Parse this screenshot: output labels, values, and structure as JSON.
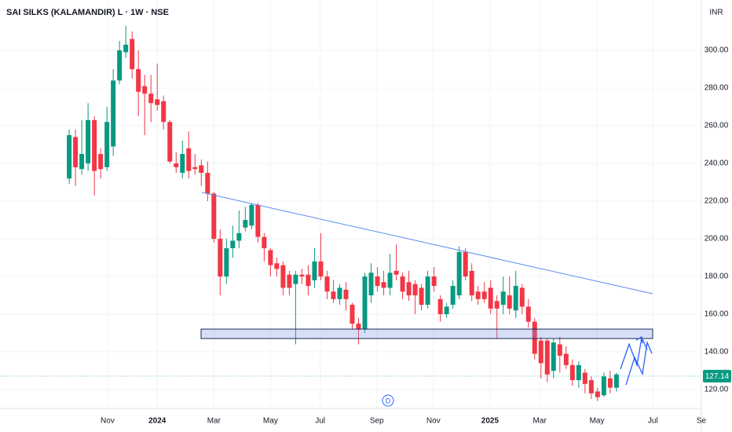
{
  "chart_data": {
    "type": "candlestick",
    "title": "SAI SILKS (KALAMANDIR) L · 1W · NSE",
    "currency": "INR",
    "event_marker": "D",
    "up_color": "#089981",
    "down_color": "#f23645",
    "open": [
      232,
      254,
      237,
      240,
      263,
      245,
      238,
      249,
      284,
      299,
      306,
      290,
      281,
      277,
      274,
      273,
      262,
      240,
      235,
      248,
      238,
      239,
      235,
      224,
      200,
      180,
      195,
      199,
      206,
      207,
      218,
      201,
      194,
      187,
      186,
      181,
      176,
      181,
      181,
      178,
      188,
      180,
      172,
      168,
      173,
      165,
      155,
      152,
      170,
      180,
      177,
      174,
      183,
      180,
      177,
      176,
      174,
      165,
      180,
      168,
      160,
      165,
      170,
      193,
      183,
      172,
      172,
      174,
      167,
      165,
      170,
      162,
      174,
      164,
      156,
      146,
      146,
      130,
      144,
      139,
      133,
      125,
      129,
      125,
      119,
      117,
      126,
      121
    ],
    "high": [
      258,
      258,
      263,
      272,
      265,
      248,
      270,
      290,
      305,
      313,
      310,
      300,
      287,
      287,
      293,
      276,
      263,
      246,
      252,
      257,
      245,
      242,
      241,
      225,
      205,
      200,
      207,
      215,
      217,
      219,
      219,
      203,
      195,
      190,
      188,
      183,
      183,
      184,
      186,
      195,
      203,
      183,
      178,
      176,
      177,
      166,
      158,
      182,
      187,
      185,
      183,
      192,
      197,
      182,
      183,
      178,
      176,
      183,
      185,
      170,
      166,
      178,
      196,
      195,
      187,
      175,
      177,
      178,
      170,
      180,
      180,
      183,
      176,
      168,
      158,
      148,
      147,
      147,
      148,
      143,
      136,
      135,
      131,
      127,
      121,
      129,
      130,
      129
    ],
    "low": [
      229,
      228,
      234,
      236,
      223,
      232,
      236,
      244,
      282,
      296,
      285,
      265,
      255,
      262,
      268,
      258,
      240,
      235,
      232,
      232,
      234,
      228,
      220,
      198,
      170,
      176,
      190,
      195,
      204,
      205,
      198,
      188,
      180,
      180,
      170,
      170,
      144,
      176,
      170,
      174,
      178,
      168,
      166,
      165,
      162,
      152,
      144,
      150,
      166,
      172,
      170,
      170,
      178,
      168,
      167,
      160,
      162,
      163,
      172,
      156,
      158,
      163,
      168,
      178,
      167,
      165,
      166,
      160,
      147,
      160,
      160,
      158,
      160,
      153,
      136,
      126,
      124,
      126,
      129,
      131,
      122,
      121,
      118,
      115,
      114,
      116,
      118,
      119
    ],
    "close": [
      255,
      238,
      245,
      263,
      236,
      237,
      262,
      284,
      300,
      303,
      290,
      278,
      277,
      272,
      271,
      262,
      241,
      238,
      245,
      236,
      237,
      235,
      224,
      200,
      180,
      195,
      199,
      203,
      210,
      218,
      201,
      195,
      186,
      184,
      174,
      174,
      181,
      180,
      175,
      188,
      180,
      172,
      168,
      174,
      168,
      155,
      152,
      180,
      182,
      175,
      174,
      182,
      181,
      172,
      170,
      170,
      165,
      180,
      175,
      160,
      164,
      175,
      193,
      180,
      170,
      168,
      168,
      163,
      163,
      172,
      163,
      175,
      164,
      156,
      139,
      134,
      128,
      145,
      138,
      133,
      125,
      133,
      123,
      118,
      116,
      127,
      121,
      128
    ],
    "last_price": 127.14,
    "xlim": [
      -11,
      100.5
    ],
    "xticks": [
      {
        "value": 6.1,
        "label": "Nov"
      },
      {
        "value": 14.0,
        "label": "2024"
      },
      {
        "value": 23.0,
        "label": "Mar"
      },
      {
        "value": 32.0,
        "label": "May"
      },
      {
        "value": 39.9,
        "label": "Jul"
      },
      {
        "value": 48.9,
        "label": "Sep"
      },
      {
        "value": 57.9,
        "label": "Nov"
      },
      {
        "value": 66.9,
        "label": "2025"
      },
      {
        "value": 74.8,
        "label": "Mar"
      },
      {
        "value": 83.9,
        "label": "May"
      },
      {
        "value": 92.8,
        "label": "Jul"
      },
      {
        "value": 100.5,
        "label": "Se"
      }
    ],
    "ylim": [
      110,
      326.7
    ],
    "yticks": [
      {
        "value": 120,
        "label": "120.00"
      },
      {
        "value": 140,
        "label": "140.00"
      },
      {
        "value": 160,
        "label": "160.00"
      },
      {
        "value": 180,
        "label": "180.00"
      },
      {
        "value": 200,
        "label": "200.00"
      },
      {
        "value": 220,
        "label": "220.00"
      },
      {
        "value": 240,
        "label": "240.00"
      },
      {
        "value": 260,
        "label": "260.00"
      },
      {
        "value": 280,
        "label": "280.00"
      },
      {
        "value": 300,
        "label": "300.00"
      }
    ],
    "grid": true
  }
}
